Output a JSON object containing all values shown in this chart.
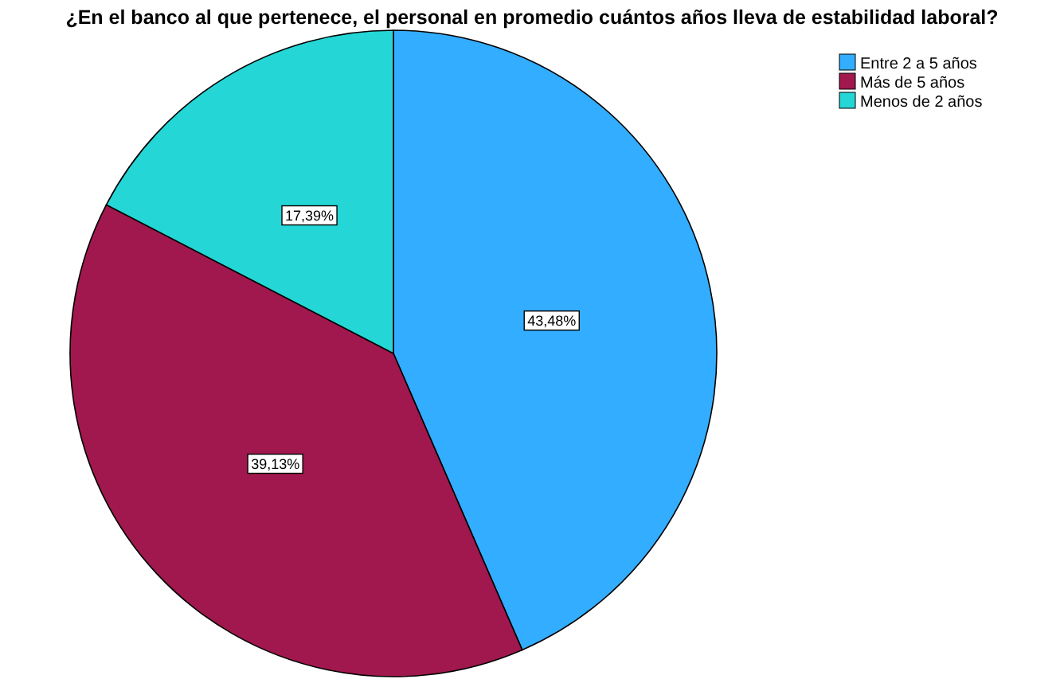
{
  "chart_data": {
    "type": "pie",
    "title": "¿En el banco al que pertenece, el personal en promedio cuántos años lleva de estabilidad laboral?",
    "categories": [
      "Entre 2 a 5 años",
      "Más de 5 años",
      "Menos de 2 años"
    ],
    "values": [
      43.48,
      39.13,
      17.39
    ],
    "colors": [
      "#33adff",
      "#a0184e",
      "#24d6d6"
    ],
    "value_labels": [
      "43,48%",
      "39,13%",
      "17,39%"
    ],
    "legend": "top right"
  }
}
